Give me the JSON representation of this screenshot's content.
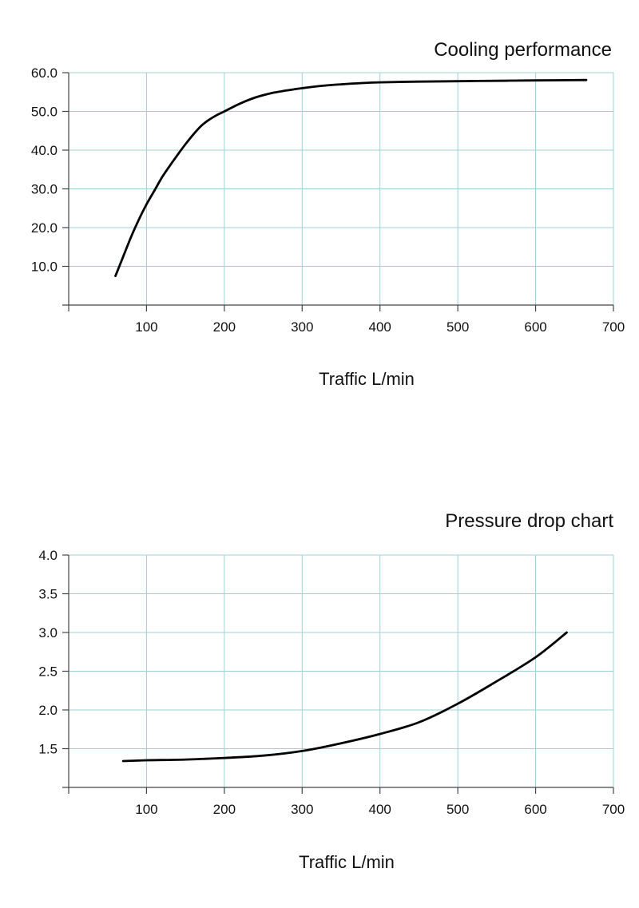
{
  "chart_data": [
    {
      "type": "line",
      "title": "Cooling performance",
      "xlabel": "Traffic L/min",
      "ylabel": "",
      "xlim": [
        0,
        700
      ],
      "ylim": [
        0,
        60
      ],
      "x_ticks": [
        100,
        200,
        300,
        400,
        500,
        600,
        700
      ],
      "y_ticks": [
        10,
        20,
        30,
        40,
        50,
        60
      ],
      "x_tick_labels": [
        "100",
        "200",
        "300",
        "400",
        "500",
        "600",
        "700"
      ],
      "y_tick_labels": [
        "10.0",
        "20.0",
        "30.0",
        "40.0",
        "50.0",
        "60.0"
      ],
      "grid": true,
      "series": [
        {
          "x": [
            60,
            70,
            80,
            90,
            100,
            110,
            120,
            130,
            140,
            150,
            160,
            170,
            180,
            190,
            200,
            220,
            240,
            260,
            280,
            300,
            325,
            350,
            375,
            400,
            450,
            500,
            550,
            600,
            665
          ],
          "y": [
            7.5,
            12.5,
            17.5,
            22,
            26,
            29.5,
            33,
            36,
            38.8,
            41.5,
            44,
            46.2,
            47.8,
            49,
            50,
            52,
            53.6,
            54.7,
            55.4,
            56,
            56.6,
            57,
            57.3,
            57.5,
            57.7,
            57.8,
            57.9,
            58,
            58.1
          ]
        }
      ]
    },
    {
      "type": "line",
      "title": "Pressure drop chart",
      "xlabel": "Traffic L/min",
      "ylabel": "",
      "xlim": [
        0,
        700
      ],
      "ylim": [
        1,
        4
      ],
      "x_ticks": [
        100,
        200,
        300,
        400,
        500,
        600,
        700
      ],
      "y_ticks": [
        1.5,
        2.0,
        2.5,
        3.0,
        3.5,
        4.0
      ],
      "x_tick_labels": [
        "100",
        "200",
        "300",
        "400",
        "500",
        "600",
        "700"
      ],
      "y_tick_labels": [
        "1.5",
        "2.0",
        "2.5",
        "3.0",
        "3.5",
        "4.0"
      ],
      "grid": true,
      "series": [
        {
          "x": [
            70,
            100,
            150,
            200,
            250,
            300,
            350,
            400,
            450,
            500,
            550,
            600,
            640
          ],
          "y": [
            1.34,
            1.35,
            1.36,
            1.38,
            1.41,
            1.47,
            1.57,
            1.69,
            1.84,
            2.08,
            2.37,
            2.68,
            3.0
          ]
        }
      ]
    }
  ]
}
